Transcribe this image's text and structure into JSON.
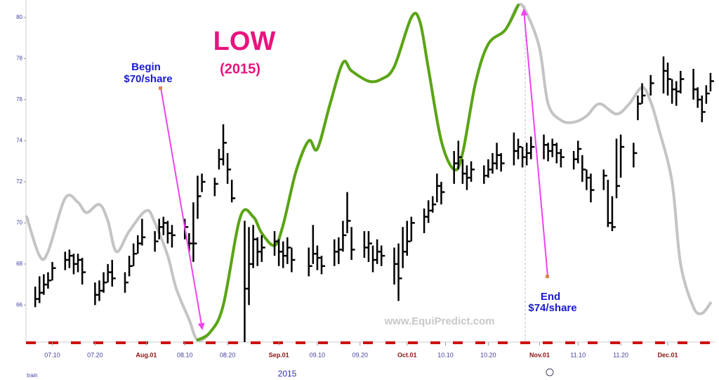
{
  "chart_data": {
    "type": "ohlc",
    "title": "LOW",
    "subtitle": "(2015)",
    "xlabel": "2015",
    "annotations": [
      "Begin",
      "$70/share",
      "End",
      "$74/share",
      "www.EquiPredict.com",
      "train"
    ],
    "color": "#000000",
    "xlim": [
      "2015-07-04",
      "2015-12-12"
    ],
    "ylim": [
      64.2,
      80.85
    ],
    "yticks": [
      66,
      68,
      70,
      72,
      74,
      76,
      78,
      80
    ],
    "xticks": [
      {
        "value": "2015-07-10",
        "label": "07.10"
      },
      {
        "value": "2015-07-20",
        "label": "07.20"
      },
      {
        "value": "2015-08-01",
        "label": "Aug.01"
      },
      {
        "value": "2015-08-10",
        "label": "08.10"
      },
      {
        "value": "2015-08-20",
        "label": "08.20"
      },
      {
        "value": "2015-09-01",
        "label": "Sep.01"
      },
      {
        "value": "2015-09-10",
        "label": "09.10"
      },
      {
        "value": "2015-09-20",
        "label": "09.20"
      },
      {
        "value": "2015-10-01",
        "label": "Oct.01"
      },
      {
        "value": "2015-10-10",
        "label": "10.10"
      },
      {
        "value": "2015-10-20",
        "label": "10.20"
      },
      {
        "value": "2015-11-01",
        "label": "Nov.01"
      },
      {
        "value": "2015-11-10",
        "label": "11.10"
      },
      {
        "value": "2015-11-20",
        "label": "11.20"
      },
      {
        "value": "2015-12-01",
        "label": "Dec.01"
      }
    ],
    "x": [
      "2015-07-06",
      "2015-07-07",
      "2015-07-08",
      "2015-07-09",
      "2015-07-10",
      "2015-07-13",
      "2015-07-14",
      "2015-07-15",
      "2015-07-16",
      "2015-07-17",
      "2015-07-20",
      "2015-07-21",
      "2015-07-22",
      "2015-07-23",
      "2015-07-24",
      "2015-07-27",
      "2015-07-28",
      "2015-07-29",
      "2015-07-30",
      "2015-07-31",
      "2015-08-03",
      "2015-08-04",
      "2015-08-05",
      "2015-08-06",
      "2015-08-07",
      "2015-08-10",
      "2015-08-11",
      "2015-08-12",
      "2015-08-13",
      "2015-08-14",
      "2015-08-17",
      "2015-08-18",
      "2015-08-19",
      "2015-08-20",
      "2015-08-21",
      "2015-08-24",
      "2015-08-25",
      "2015-08-26",
      "2015-08-27",
      "2015-08-28",
      "2015-08-31",
      "2015-09-01",
      "2015-09-02",
      "2015-09-03",
      "2015-09-04",
      "2015-09-08",
      "2015-09-09",
      "2015-09-10",
      "2015-09-11",
      "2015-09-14",
      "2015-09-15",
      "2015-09-16",
      "2015-09-17",
      "2015-09-18",
      "2015-09-21",
      "2015-09-22",
      "2015-09-23",
      "2015-09-24",
      "2015-09-25",
      "2015-09-28",
      "2015-09-29",
      "2015-09-30",
      "2015-10-01",
      "2015-10-02",
      "2015-10-05",
      "2015-10-06",
      "2015-10-07",
      "2015-10-08",
      "2015-10-09",
      "2015-10-12",
      "2015-10-13",
      "2015-10-14",
      "2015-10-15",
      "2015-10-16",
      "2015-10-19",
      "2015-10-20",
      "2015-10-21",
      "2015-10-22",
      "2015-10-23",
      "2015-10-26",
      "2015-10-27",
      "2015-10-28",
      "2015-10-29",
      "2015-10-30",
      "2015-11-02",
      "2015-11-03",
      "2015-11-04",
      "2015-11-05",
      "2015-11-06",
      "2015-11-09",
      "2015-11-10",
      "2015-11-11",
      "2015-11-12",
      "2015-11-13",
      "2015-11-16",
      "2015-11-17",
      "2015-11-18",
      "2015-11-19",
      "2015-11-20",
      "2015-11-23",
      "2015-11-24",
      "2015-11-25",
      "2015-11-27",
      "2015-11-30",
      "2015-12-01",
      "2015-12-02",
      "2015-12-03",
      "2015-12-04",
      "2015-12-07",
      "2015-12-08",
      "2015-12-09",
      "2015-12-10",
      "2015-12-11"
    ],
    "high": [
      66.9,
      67.4,
      67.5,
      67.6,
      68.1,
      68.6,
      68.7,
      68.5,
      68.5,
      68.3,
      67.1,
      67.2,
      67.6,
      68.0,
      68.2,
      67.6,
      68.4,
      69.0,
      69.4,
      70.2,
      69.6,
      70.2,
      70.3,
      70.1,
      69.9,
      70.2,
      69.5,
      71.0,
      72.3,
      72.4,
      72.2,
      73.6,
      74.8,
      73.4,
      72.1,
      70.1,
      69.8,
      69.9,
      69.3,
      69.4,
      69.6,
      69.2,
      69.1,
      69.3,
      68.8,
      68.8,
      69.9,
      68.9,
      68.4,
      69.2,
      69.3,
      70.1,
      71.5,
      69.8,
      69.6,
      69.6,
      68.9,
      69.2,
      68.9,
      68.8,
      69.0,
      69.8,
      70.1,
      70.3,
      70.7,
      71.1,
      71.3,
      72.4,
      72.0,
      73.5,
      74.0,
      73.1,
      72.8,
      73.0,
      72.8,
      73.1,
      73.4,
      73.9,
      73.4,
      74.4,
      74.1,
      73.7,
      73.9,
      74.2,
      74.3,
      73.9,
      74.1,
      73.9,
      73.6,
      73.5,
      74.0,
      73.3,
      72.6,
      72.4,
      72.6,
      72.1,
      71.3,
      74.1,
      74.3,
      73.9,
      76.2,
      76.8,
      77.2,
      78.1,
      77.8,
      77.0,
      76.9,
      77.4,
      77.5,
      76.6,
      76.2,
      76.7,
      77.3
    ],
    "low": [
      65.9,
      66.1,
      66.5,
      66.8,
      67.2,
      67.7,
      67.8,
      67.5,
      67.6,
      67.0,
      66.0,
      66.2,
      66.6,
      67.1,
      66.9,
      66.6,
      67.4,
      67.9,
      68.5,
      68.9,
      68.6,
      69.2,
      69.4,
      69.0,
      68.8,
      69.2,
      68.6,
      68.1,
      70.2,
      71.5,
      71.3,
      72.6,
      72.8,
      71.9,
      71.0,
      64.2,
      66.0,
      67.8,
      67.9,
      68.1,
      68.4,
      67.9,
      67.8,
      68.0,
      67.6,
      67.4,
      68.0,
      67.7,
      67.5,
      67.9,
      68.0,
      68.6,
      69.5,
      68.2,
      68.3,
      68.1,
      67.6,
      68.0,
      67.9,
      67.0,
      66.2,
      67.8,
      68.4,
      69.1,
      69.5,
      70.0,
      70.5,
      71.0,
      70.9,
      71.9,
      72.6,
      71.9,
      71.6,
      72.0,
      71.9,
      72.2,
      72.4,
      72.6,
      72.5,
      72.8,
      73.1,
      72.7,
      72.8,
      73.1,
      73.1,
      73.0,
      73.2,
      72.9,
      72.7,
      72.6,
      72.9,
      72.0,
      71.6,
      71.0,
      71.6,
      69.8,
      69.6,
      71.2,
      72.2,
      72.7,
      75.0,
      75.8,
      76.2,
      76.3,
      76.2,
      75.8,
      75.7,
      76.3,
      76.0,
      75.6,
      74.9,
      75.8,
      76.4
    ],
    "close": [
      66.3,
      66.6,
      67.0,
      67.2,
      67.8,
      68.2,
      68.4,
      68.0,
      68.2,
      67.6,
      66.5,
      66.7,
      67.1,
      67.6,
      67.3,
      67.1,
      67.9,
      68.5,
      69.0,
      69.3,
      69.1,
      69.8,
      70.0,
      69.5,
      69.4,
      69.8,
      69.0,
      69.0,
      71.3,
      72.0,
      71.9,
      73.1,
      73.9,
      72.6,
      71.2,
      66.8,
      68.0,
      69.2,
      68.6,
      68.8,
      69.1,
      68.6,
      68.4,
      68.8,
      68.2,
      67.9,
      68.5,
      68.3,
      67.9,
      68.6,
      68.7,
      69.4,
      70.1,
      68.7,
      68.8,
      69.0,
      68.2,
      68.6,
      68.4,
      68.0,
      67.3,
      68.6,
      69.1,
      70.0,
      70.3,
      70.6,
      70.9,
      71.8,
      71.5,
      72.9,
      73.2,
      72.4,
      72.2,
      72.6,
      72.3,
      72.6,
      72.9,
      73.3,
      72.9,
      73.5,
      73.7,
      73.2,
      73.4,
      73.7,
      73.8,
      73.5,
      73.8,
      73.4,
      73.2,
      73.1,
      73.6,
      72.6,
      72.2,
      71.6,
      72.3,
      70.0,
      69.8,
      71.8,
      73.7,
      73.4,
      75.8,
      76.2,
      76.8,
      77.4,
      77.0,
      76.5,
      76.4,
      77.0,
      76.5,
      76.0,
      75.4,
      76.3,
      76.9
    ],
    "lines": [
      {
        "color": "#c4c4c4",
        "x": [
          "2015-07-04",
          "2015-07-07",
          "2015-07-09",
          "2015-07-13",
          "2015-07-16",
          "2015-07-18",
          "2015-07-21",
          "2015-07-23",
          "2015-07-25",
          "2015-07-28",
          "2015-08-01",
          "2015-08-03",
          "2015-08-06",
          "2015-08-08",
          "2015-08-11",
          "2015-08-13",
          "2015-08-16",
          "2015-08-19",
          "2015-08-23",
          "2015-08-26",
          "2015-08-28",
          "2015-08-31",
          "2015-09-02",
          "2015-09-05",
          "2015-09-08",
          "2015-09-10",
          "2015-09-13",
          "2015-09-16",
          "2015-09-18",
          "2015-09-22",
          "2015-09-25",
          "2015-09-28",
          "2015-10-02",
          "2015-10-04",
          "2015-10-06",
          "2015-10-09",
          "2015-10-12",
          "2015-10-14",
          "2015-10-17",
          "2015-10-20",
          "2015-10-24",
          "2015-10-27",
          "2015-10-29",
          "2015-11-01",
          "2015-11-03",
          "2015-11-06",
          "2015-11-09",
          "2015-11-12",
          "2015-11-15",
          "2015-11-19",
          "2015-11-22",
          "2015-11-25",
          "2015-11-27",
          "2015-11-29",
          "2015-12-02",
          "2015-12-04",
          "2015-12-07",
          "2015-12-09",
          "2015-12-11"
        ],
        "values": [
          70.3,
          68.4,
          68.6,
          71.2,
          71.0,
          70.5,
          70.9,
          70.1,
          68.6,
          69.6,
          70.6,
          70.0,
          68.4,
          66.8,
          65.3,
          64.3,
          64.7,
          66.0,
          70.3,
          70.3,
          69.5,
          68.9,
          69.9,
          72.5,
          74.0,
          73.6,
          75.8,
          77.8,
          77.4,
          76.9,
          77.0,
          77.6,
          80.0,
          79.8,
          77.5,
          74.0,
          72.6,
          73.4,
          76.8,
          78.7,
          79.4,
          80.6,
          80.2,
          78.5,
          75.8,
          75.0,
          74.9,
          75.2,
          75.8,
          75.3,
          75.8,
          76.6,
          75.9,
          74.5,
          72.0,
          68.0,
          65.9,
          65.6,
          66.1
        ]
      },
      {
        "color": "#5aa514",
        "x": [
          "2015-08-13",
          "2015-08-16",
          "2015-08-19",
          "2015-08-23",
          "2015-08-26",
          "2015-08-28",
          "2015-08-31",
          "2015-09-02",
          "2015-09-05",
          "2015-09-08",
          "2015-09-10",
          "2015-09-13",
          "2015-09-16",
          "2015-09-18",
          "2015-09-22",
          "2015-09-25",
          "2015-09-28",
          "2015-10-02",
          "2015-10-04",
          "2015-10-06",
          "2015-10-09",
          "2015-10-12",
          "2015-10-14",
          "2015-10-17",
          "2015-10-20",
          "2015-10-24",
          "2015-10-27"
        ],
        "values": [
          64.3,
          64.7,
          66.0,
          70.3,
          70.3,
          69.5,
          68.9,
          69.9,
          72.5,
          74.0,
          73.6,
          75.8,
          77.8,
          77.4,
          76.9,
          77.0,
          77.6,
          80.0,
          79.8,
          77.5,
          74.0,
          72.6,
          73.4,
          76.8,
          78.7,
          79.4,
          80.6
        ]
      }
    ]
  }
}
